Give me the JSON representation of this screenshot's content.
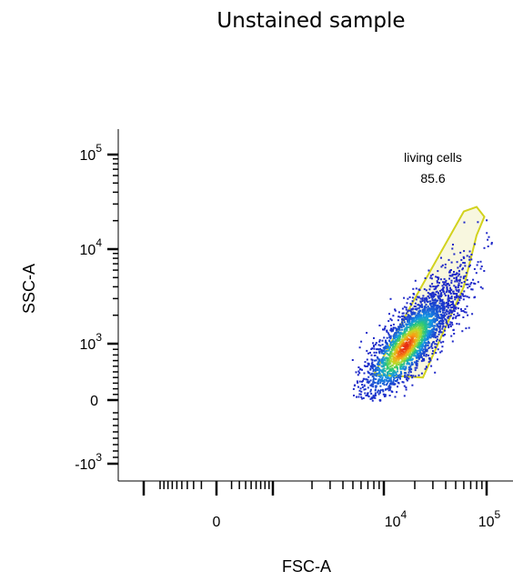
{
  "chart_data": {
    "type": "scatter",
    "title": "Unstained sample",
    "xlabel": "FSC-A",
    "ylabel": "SSC-A",
    "x_scale": "biexponential",
    "y_scale": "biexponential",
    "x_tick_labels": [
      {
        "base": "0",
        "exp": ""
      },
      {
        "base": "10",
        "exp": "4"
      },
      {
        "base": "10",
        "exp": "5"
      }
    ],
    "y_tick_labels": [
      {
        "base": "10",
        "exp": "5"
      },
      {
        "base": "10",
        "exp": "4"
      },
      {
        "base": "10",
        "exp": "3"
      },
      {
        "base": "0",
        "exp": ""
      },
      {
        "base": "-10",
        "exp": "3"
      }
    ],
    "colormap": "density (blue-cyan-green-yellow-red)",
    "density_peak": {
      "x": 15000,
      "y": 900
    },
    "gate": {
      "name": "living cells",
      "value": "85.6",
      "color": "#d2d21e",
      "fill": "#f2f0c4",
      "vertices": [
        [
          8000,
          450
        ],
        [
          24000,
          400
        ],
        [
          60000,
          4000
        ],
        [
          80000,
          14000
        ],
        [
          95000,
          22000
        ],
        [
          80000,
          28000
        ],
        [
          60000,
          25000
        ],
        [
          20000,
          3000
        ]
      ]
    }
  }
}
